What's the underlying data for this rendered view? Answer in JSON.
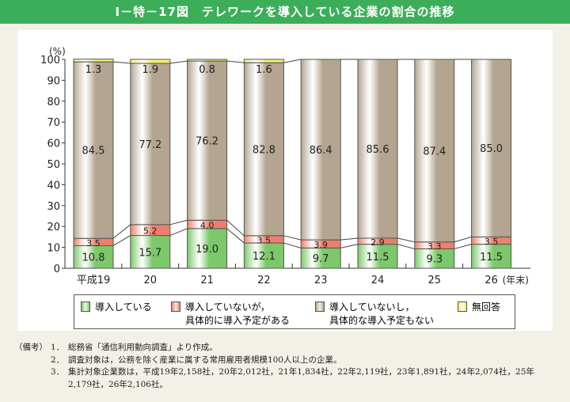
{
  "title": "Ⅰ－特－17図　テレワークを導入している企業の割合の推移",
  "chart_data": {
    "type": "bar",
    "stacked": true,
    "ylabel": "(%)",
    "ylim": [
      0,
      100
    ],
    "yticks": [
      0,
      10,
      20,
      30,
      40,
      50,
      60,
      70,
      80,
      90,
      100
    ],
    "categories": [
      "平成19",
      "20",
      "21",
      "22",
      "23",
      "24",
      "25",
      "26"
    ],
    "x_suffix": "(年末)",
    "series": [
      {
        "name": "導入している",
        "color": "#7cc86a",
        "values": [
          10.8,
          15.7,
          19.0,
          12.1,
          9.7,
          11.5,
          9.3,
          11.5
        ]
      },
      {
        "name": "導入していないが，具体的に導入予定がある",
        "color": "#ec7f6e",
        "values": [
          3.5,
          5.2,
          4.0,
          3.5,
          3.9,
          2.9,
          3.3,
          3.5
        ]
      },
      {
        "name": "導入していないし，具体的な導入予定もない",
        "color": "#b3a590",
        "values": [
          84.5,
          77.2,
          76.2,
          82.8,
          86.4,
          85.6,
          87.4,
          85.0
        ]
      },
      {
        "name": "無回答",
        "color": "#f4ee6a",
        "values": [
          1.3,
          1.9,
          0.8,
          1.6,
          0,
          0,
          0,
          0
        ]
      }
    ],
    "labels_shown": [
      [
        "10.8",
        "15.7",
        "19.0",
        "12.1",
        "9.7",
        "11.5",
        "9.3",
        "11.5"
      ],
      [
        "3.5",
        "5.2",
        "4.0",
        "3.5",
        "3.9",
        "2.9",
        "3.3",
        "3.5"
      ],
      [
        "84.5",
        "77.2",
        "76.2",
        "82.8",
        "86.4",
        "85.6",
        "87.4",
        "85.0"
      ],
      [
        "1.3",
        "1.9",
        "0.8",
        "1.6",
        "",
        "",
        "",
        ""
      ]
    ],
    "legend": "bottom"
  },
  "legend": {
    "items": [
      {
        "line1": "導入している",
        "line2": ""
      },
      {
        "line1": "導入していないが，",
        "line2": "具体的に導入予定がある"
      },
      {
        "line1": "導入していないし，",
        "line2": "具体的な導入予定もない"
      },
      {
        "line1": "無回答",
        "line2": ""
      }
    ]
  },
  "notes": {
    "header": "（備考）",
    "items": [
      {
        "num": "1．",
        "text": "総務省「通信利用動向調査」より作成。"
      },
      {
        "num": "2．",
        "text": "調査対象は，公務を除く産業に属する常用雇用者規模100人以上の企業。"
      },
      {
        "num": "3．",
        "text": "集計対象企業数は，平成19年2,158社，20年2,012社，21年1,834社，22年2,119社，23年1,891社，24年2,074社，25年2,179社，26年2,106社。"
      }
    ]
  }
}
